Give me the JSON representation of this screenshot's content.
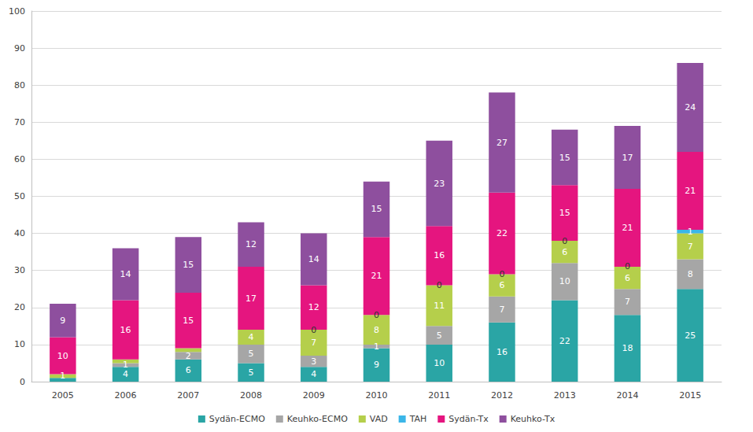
{
  "chart_data": {
    "type": "bar",
    "stacked": true,
    "data_labels": true,
    "grid": true,
    "legend": "bottom",
    "categories": [
      "2005",
      "2006",
      "2007",
      "2008",
      "2009",
      "2010",
      "2011",
      "2012",
      "2013",
      "2014",
      "2015"
    ],
    "ylim": [
      0,
      100
    ],
    "yticks": [
      0,
      10,
      20,
      30,
      40,
      50,
      60,
      70,
      80,
      90,
      100
    ],
    "series": [
      {
        "name": "Sydän-ECMO",
        "color": "#2aa5a5",
        "values": [
          1,
          4,
          6,
          5,
          4,
          9,
          10,
          16,
          22,
          18,
          25
        ]
      },
      {
        "name": "Keuhko-ECMO",
        "color": "#a6a6a6",
        "values": [
          0,
          1,
          2,
          5,
          3,
          1,
          5,
          7,
          10,
          7,
          8
        ]
      },
      {
        "name": "VAD",
        "color": "#b5cf4b",
        "values": [
          1,
          1,
          1,
          4,
          7,
          8,
          11,
          6,
          6,
          6,
          7
        ]
      },
      {
        "name": "TAH",
        "color": "#3bb6e8",
        "values": [
          0,
          0,
          0,
          0,
          0,
          0,
          0,
          0,
          0,
          0,
          1
        ]
      },
      {
        "name": "Sydän-Tx",
        "color": "#e5157f",
        "values": [
          10,
          16,
          15,
          17,
          12,
          21,
          16,
          22,
          15,
          21,
          21
        ]
      },
      {
        "name": "Keuhko-Tx",
        "color": "#8e4f9e",
        "values": [
          9,
          14,
          15,
          12,
          14,
          15,
          23,
          27,
          15,
          17,
          24
        ]
      }
    ]
  }
}
